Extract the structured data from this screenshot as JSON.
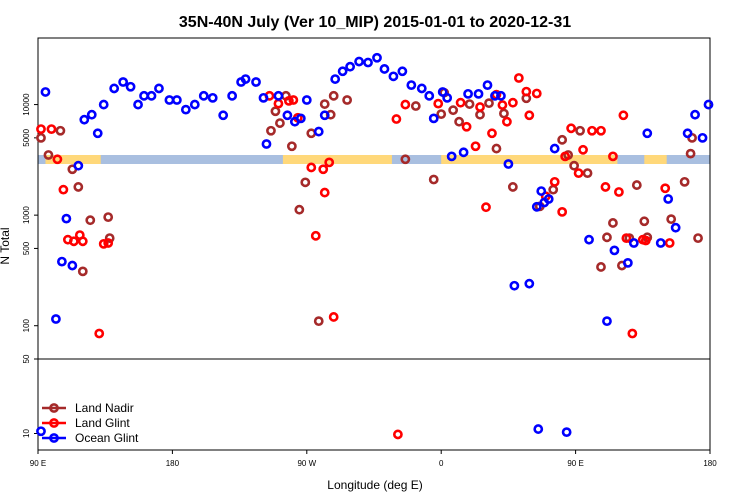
{
  "chart_data": {
    "type": "scatter",
    "title": "35N-40N July (Ver 10_MIP)   2015-01-01 to 2020-12-31",
    "xlabel": "Longitude (deg E)",
    "ylabel": "N Total",
    "x_ticks": [
      {
        "x": 90,
        "label": "90 E"
      },
      {
        "x": 180,
        "label": "180"
      },
      {
        "x": 270,
        "label": "90 W"
      },
      {
        "x": 360,
        "label": "0"
      },
      {
        "x": 450,
        "label": "90 E"
      },
      {
        "x": 540,
        "label": "180"
      }
    ],
    "y_ticks_upper": [
      {
        "y": 50,
        "label": "50"
      },
      {
        "y": 100,
        "label": "100"
      },
      {
        "y": 500,
        "label": "500"
      },
      {
        "y": 1000,
        "label": "1000"
      },
      {
        "y": 5000,
        "label": "5000"
      },
      {
        "y": 10000,
        "label": "10000"
      }
    ],
    "y_ticks_lower": [
      {
        "y": 10,
        "label": "10"
      },
      {
        "y": 50,
        "label": "50"
      }
    ],
    "xlim": [
      90,
      540
    ],
    "ylim_upper": [
      50,
      40000
    ],
    "ylim_lower": [
      7,
      50
    ],
    "y_scale": "log",
    "legend_position": "bottom-left",
    "colors": {
      "land_nadir": "#a52a2a",
      "land_glint": "#ff0000",
      "ocean_glint": "#0000ff",
      "ocean_band": "#a9bfe0",
      "land_band": "#ffd87a"
    },
    "series": [
      {
        "name": "Land Nadir",
        "color": "#a52a2a",
        "x": [
          92,
          97,
          105,
          113,
          117,
          120,
          125,
          137,
          138,
          246,
          249,
          252,
          256,
          260,
          265,
          269,
          273,
          278,
          282,
          286,
          288,
          297,
          336,
          343,
          355,
          360,
          362,
          368,
          372,
          379,
          386,
          392,
          397,
          402,
          408,
          417,
          426,
          435,
          441,
          445,
          449,
          453,
          458,
          467,
          471,
          475,
          481,
          486,
          491,
          496,
          498,
          514,
          523,
          527,
          528,
          532
        ],
        "y": [
          5000,
          3500,
          5800,
          2600,
          1800,
          310,
          900,
          960,
          620,
          5800,
          8700,
          6800,
          12000,
          4200,
          1120,
          1980,
          5500,
          110,
          10100,
          8100,
          12000,
          11000,
          3200,
          9700,
          2100,
          8200,
          12800,
          8900,
          7000,
          10100,
          8100,
          10300,
          4000,
          8300,
          1800,
          11400,
          1200,
          1700,
          4800,
          3500,
          2800,
          5800,
          2400,
          340,
          630,
          850,
          350,
          620,
          1870,
          880,
          630,
          920,
          2000,
          3600,
          5000,
          620
        ]
      },
      {
        "name": "Land Glint",
        "color": "#ff0000",
        "x": [
          92,
          99,
          103,
          107,
          110,
          114,
          118,
          120,
          131,
          134,
          137,
          245,
          251,
          258,
          261,
          264,
          273,
          276,
          281,
          282,
          285,
          288,
          330,
          336,
          358,
          373,
          377,
          383,
          386,
          390,
          394,
          397,
          401,
          404,
          408,
          412,
          417,
          419,
          424,
          430,
          436,
          441,
          443,
          447,
          452,
          455,
          461,
          467,
          470,
          475,
          479,
          482,
          484,
          488,
          495,
          497,
          510,
          513
        ],
        "y": [
          6000,
          6000,
          3200,
          1700,
          600,
          580,
          660,
          580,
          85,
          550,
          560,
          12000,
          10200,
          10800,
          11000,
          7600,
          2700,
          650,
          2600,
          1600,
          3000,
          120,
          7400,
          10000,
          10200,
          10400,
          6300,
          4200,
          9500,
          1180,
          5500,
          12300,
          9900,
          7000,
          10400,
          17400,
          13100,
          8000,
          12600,
          1480,
          2000,
          1070,
          3400,
          6100,
          2400,
          3900,
          5800,
          5800,
          1800,
          3400,
          1620,
          8000,
          620,
          85,
          600,
          590,
          1750,
          560
        ]
      },
      {
        "name": "Ocean Glint",
        "color": "#0000ff",
        "x": [
          95,
          102,
          106,
          109,
          113,
          117,
          121,
          126,
          130,
          134,
          141,
          147,
          152,
          157,
          161,
          166,
          171,
          178,
          183,
          189,
          195,
          201,
          207,
          214,
          220,
          226,
          229,
          236,
          241,
          243,
          251,
          257,
          262,
          266,
          270,
          278,
          282,
          289,
          294,
          299,
          305,
          311,
          317,
          322,
          328,
          334,
          340,
          347,
          352,
          355,
          361,
          364,
          367,
          375,
          378,
          385,
          391,
          396,
          400,
          405,
          409,
          419,
          424,
          427,
          429,
          432,
          436,
          459,
          471,
          476,
          485,
          489,
          498,
          507,
          512,
          517,
          525,
          530,
          535,
          539
        ],
        "y": [
          13000,
          115,
          380,
          930,
          350,
          2800,
          7300,
          8100,
          5500,
          10000,
          14000,
          16000,
          14500,
          10000,
          12000,
          12000,
          14000,
          11000,
          11000,
          9000,
          10000,
          12000,
          11500,
          8000,
          12000,
          16000,
          17000,
          16000,
          11500,
          4400,
          12000,
          8000,
          7000,
          7500,
          11000,
          5700,
          8000,
          17000,
          20000,
          22000,
          24500,
          24000,
          26500,
          21000,
          18000,
          20000,
          15000,
          14000,
          12000,
          7500,
          13000,
          11500,
          3400,
          3700,
          12500,
          12500,
          15000,
          12000,
          12000,
          2900,
          230,
          240,
          1190,
          1650,
          1300,
          1400,
          4000,
          600,
          110,
          480,
          370,
          560,
          5500,
          560,
          1400,
          770,
          5500,
          8100,
          5000,
          10000
        ]
      }
    ],
    "lower_panel": [
      {
        "series": "Ocean Glint",
        "x": 92,
        "y": 10.5
      },
      {
        "series": "Land Glint",
        "x": 331,
        "y": 9.8
      },
      {
        "series": "Ocean Glint",
        "x": 425,
        "y": 11.0
      },
      {
        "series": "Ocean Glint",
        "x": 444,
        "y": 10.3
      }
    ]
  }
}
